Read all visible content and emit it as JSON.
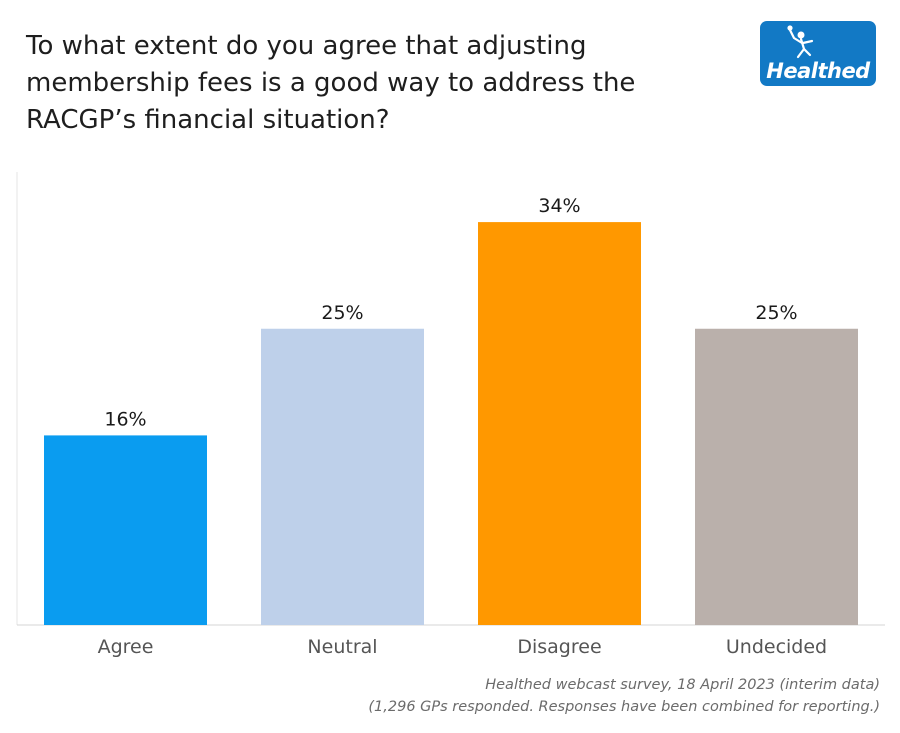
{
  "title": "To what extent do you agree that adjusting membership fees is a good way to address the RACGP’s financial situation?",
  "logo": {
    "text": "Healthed",
    "icon": "figure-with-torch-icon",
    "color": "#1279c5"
  },
  "footer": {
    "line1": "Healthed webcast survey, 18 April 2023 (interim data)",
    "line2": "(1,296 GPs responded. Responses have been combined for reporting.)"
  },
  "chart_data": {
    "type": "bar",
    "categories": [
      "Agree",
      "Neutral",
      "Disagree",
      "Undecided"
    ],
    "values": [
      16,
      25,
      34,
      25
    ],
    "value_labels": [
      "16%",
      "25%",
      "34%",
      "25%"
    ],
    "colors": [
      "#0a9cf0",
      "#bed0ea",
      "#ff9800",
      "#bab0ab"
    ],
    "ylim": [
      0,
      40
    ],
    "grid": false,
    "title": "",
    "xlabel": "",
    "ylabel": ""
  }
}
